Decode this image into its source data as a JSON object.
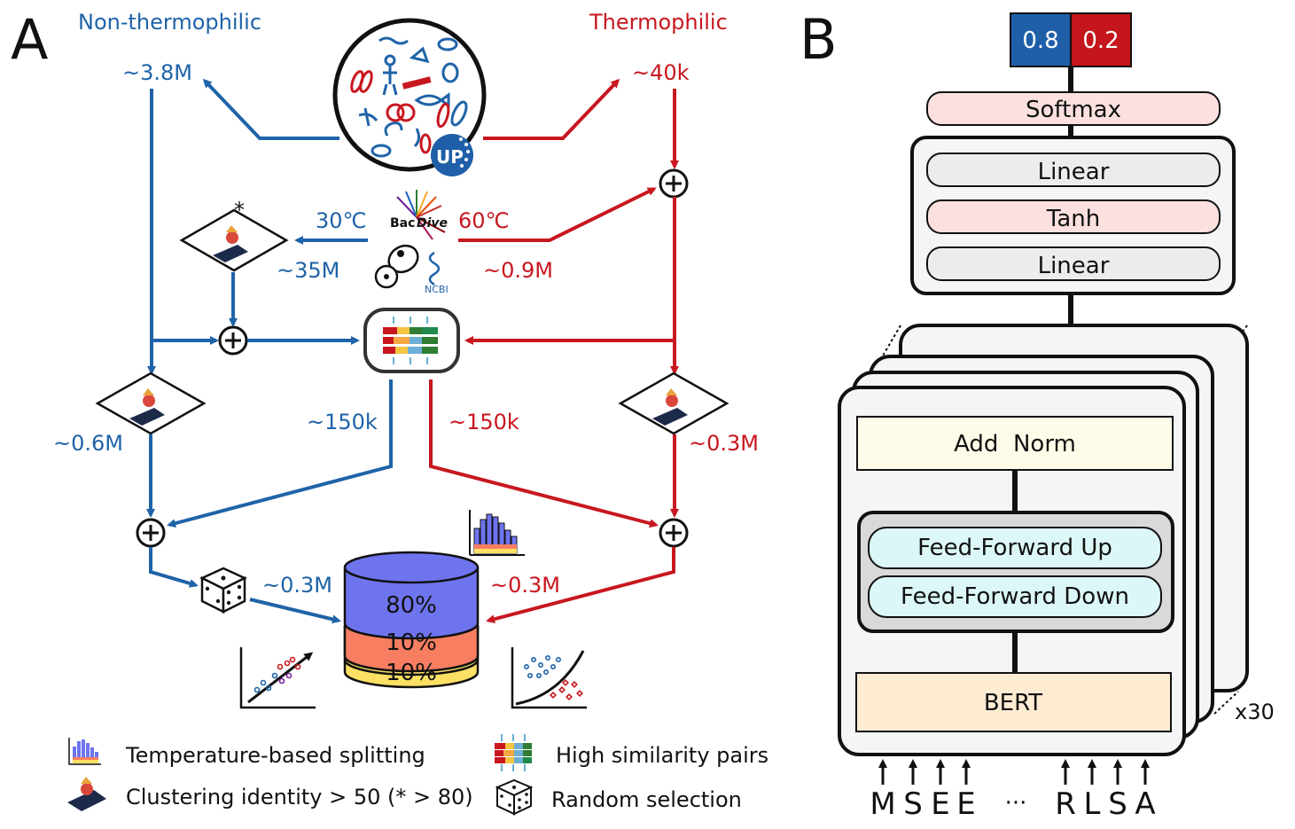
{
  "panel_a": {
    "letter": "A",
    "left_title": "Non-thermophilic",
    "right_title": "Thermophilic",
    "left_total": "~3.8M",
    "right_total": "~40k",
    "temp_low": "30℃",
    "temp_high": "60℃",
    "bacdive_bac": "Bac",
    "bacdive_dive": "Dive",
    "ncbi": "NCBI",
    "uniprot": "UP",
    "left_35m": "~35M",
    "right_09m": "~0.9M",
    "left_150k": "~150k",
    "right_150k": "~150k",
    "left_06m": "~0.6M",
    "right_03m_cluster": "~0.3M",
    "left_03m": "~0.3M",
    "right_03m": "~0.3M",
    "asterisk": "*",
    "plus": "+",
    "split_train": "80%",
    "split_val": "10%",
    "split_test": "10%",
    "legend": {
      "temp_split": "Temperature-based splitting",
      "similarity": "High similarity pairs",
      "clustering": "Clustering identity > 50 (* > 80)",
      "random": "Random selection"
    }
  },
  "panel_b": {
    "letter": "B",
    "prob_non": "0.8",
    "prob_thermo": "0.2",
    "softmax": "Softmax",
    "linear_top": "Linear",
    "tanh": "Tanh",
    "linear_bottom": "Linear",
    "add_norm": "Add  Norm",
    "ff_up": "Feed-Forward Up",
    "ff_down": "Feed-Forward Down",
    "bert": "BERT",
    "repeat": "x30",
    "tokens": [
      "M",
      "S",
      "E",
      "E",
      "···",
      "R",
      "L",
      "S",
      "A"
    ]
  },
  "colors": {
    "blue": "#1f63a8",
    "red": "#c8171f",
    "prob_blue": "#1f5fa8",
    "prob_red": "#c4161c",
    "db_purple": "#6e74ee",
    "db_orange": "#f87e62",
    "db_yellow": "#fbe064"
  }
}
